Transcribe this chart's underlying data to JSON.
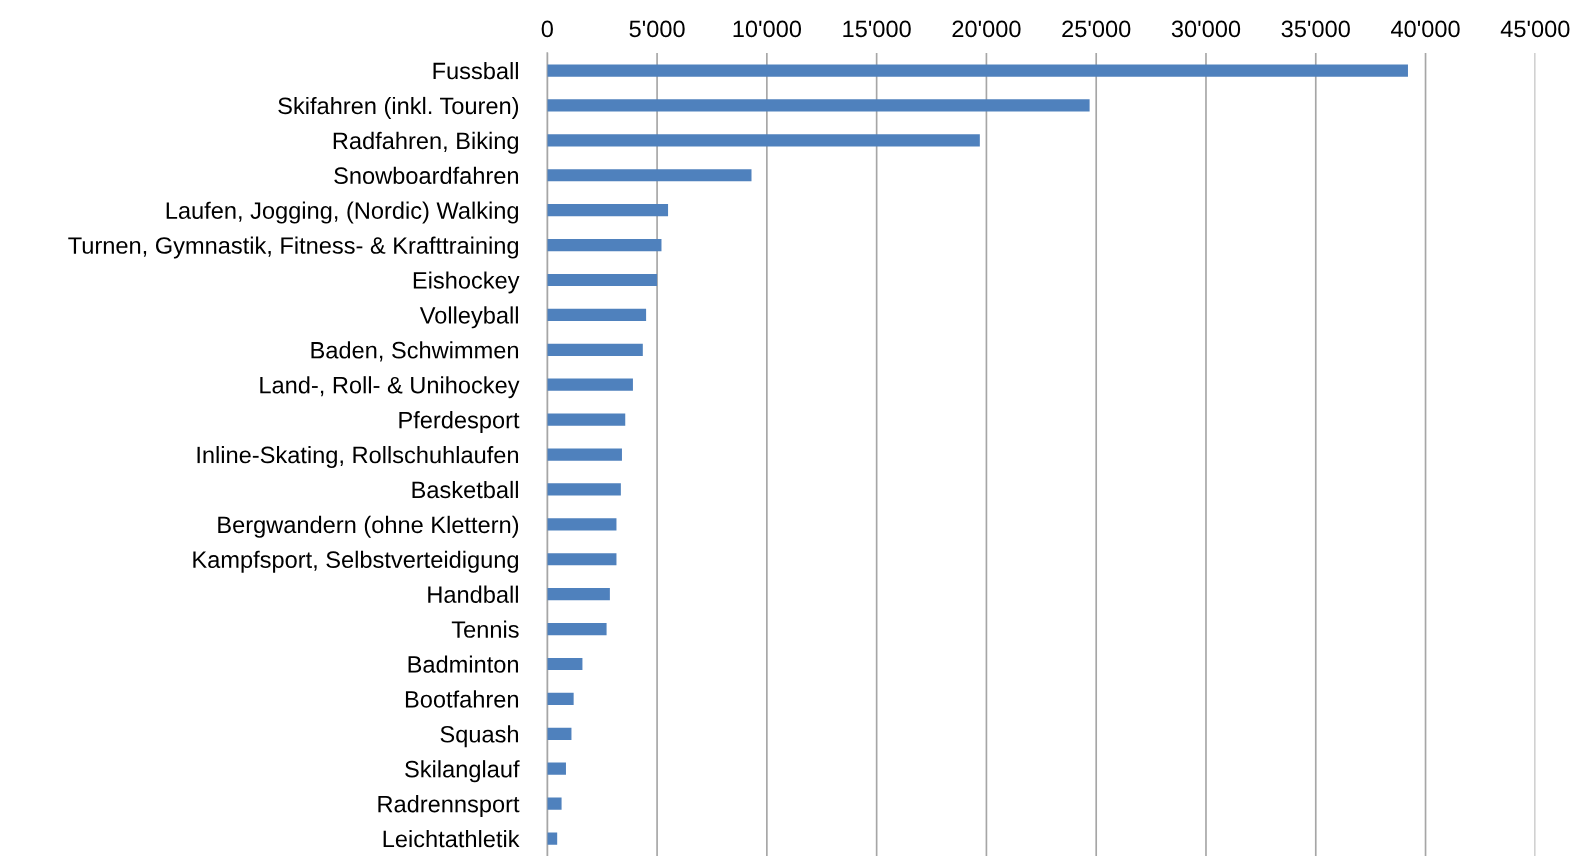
{
  "chart_data": {
    "type": "bar",
    "orientation": "horizontal",
    "color": "#4f81bd",
    "categories": [
      "Fussball",
      "Skifahren (inkl. Touren)",
      "Radfahren, Biking",
      "Snowboardfahren",
      "Laufen, Jogging, (Nordic) Walking",
      "Turnen, Gymnastik, Fitness- & Krafttraining",
      "Eishockey",
      "Volleyball",
      "Baden, Schwimmen",
      "Land-, Roll- & Unihockey",
      "Pferdesport",
      "Inline-Skating, Rollschuhlaufen",
      "Basketball",
      "Bergwandern (ohne Klettern)",
      "Kampfsport, Selbstverteidigung",
      "Handball",
      "Tennis",
      "Badminton",
      "Bootfahren",
      "Squash",
      "Skilanglauf",
      "Radrennsport",
      "Leichtathletik"
    ],
    "values": [
      39200,
      24700,
      19700,
      9300,
      5500,
      5200,
      5000,
      4500,
      4350,
      3900,
      3550,
      3400,
      3350,
      3150,
      3150,
      2850,
      2700,
      1600,
      1200,
      1100,
      850,
      650,
      450
    ],
    "xlim": [
      0,
      45000
    ],
    "xticks": [
      0,
      {
        "value": 5000,
        "label": "5'000"
      },
      {
        "value": 10000,
        "label": "10'000"
      },
      {
        "value": 15000,
        "label": "15'000"
      },
      {
        "value": 20000,
        "label": "20'000"
      },
      {
        "value": 25000,
        "label": "25'000"
      },
      {
        "value": 30000,
        "label": "30'000"
      },
      {
        "value": 35000,
        "label": "35'000"
      },
      {
        "value": 40000,
        "label": "40'000"
      },
      {
        "value": 45000,
        "label": "45'000"
      }
    ],
    "grid": "x"
  }
}
